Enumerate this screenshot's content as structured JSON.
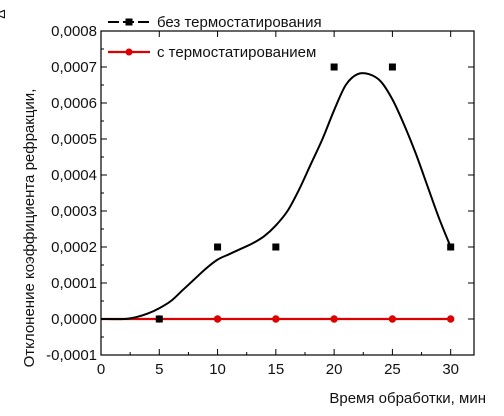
{
  "chart_data": {
    "type": "line",
    "corner_label": "Δ",
    "xlabel": "Время обработки, мин",
    "ylabel": "Отклонение коэффициента рефракции,",
    "xlim": [
      0,
      32
    ],
    "ylim": [
      -0.0001,
      0.0008
    ],
    "x_ticks": [
      0,
      5,
      10,
      15,
      20,
      25,
      30
    ],
    "x_tick_labels": [
      "0",
      "5",
      "10",
      "15",
      "20",
      "25",
      "30"
    ],
    "y_ticks": [
      -0.0001,
      0,
      0.0001,
      0.0002,
      0.0003,
      0.0004,
      0.0005,
      0.0006,
      0.0007,
      0.0008
    ],
    "y_tick_labels": [
      "-0,0001",
      "0,0000",
      "0,0001",
      "0,0002",
      "0,0003",
      "0,0004",
      "0,0005",
      "0,0006",
      "0,0007",
      "0,0008"
    ],
    "grid": false,
    "legend_position": "top-left",
    "series": [
      {
        "name": "без термостатирования",
        "color": "#000000",
        "marker": "square",
        "points": [
          [
            5,
            0
          ],
          [
            10,
            0.0002
          ],
          [
            15,
            0.0002
          ],
          [
            20,
            0.0007
          ],
          [
            25,
            0.0007
          ],
          [
            30,
            0.0002
          ]
        ],
        "fit_curve": [
          [
            0,
            0
          ],
          [
            2,
            0
          ],
          [
            3,
            5e-06
          ],
          [
            4,
            1.5e-05
          ],
          [
            5,
            3e-05
          ],
          [
            6,
            5e-05
          ],
          [
            7,
            8e-05
          ],
          [
            8,
            0.00011
          ],
          [
            9,
            0.00014
          ],
          [
            10,
            0.000165
          ],
          [
            11,
            0.00018
          ],
          [
            12,
            0.000195
          ],
          [
            13,
            0.00021
          ],
          [
            14,
            0.00023
          ],
          [
            15,
            0.00026
          ],
          [
            16,
            0.0003
          ],
          [
            17,
            0.00036
          ],
          [
            18,
            0.00043
          ],
          [
            19,
            0.0005
          ],
          [
            20,
            0.00058
          ],
          [
            21,
            0.00065
          ],
          [
            22,
            0.00068
          ],
          [
            23,
            0.00068
          ],
          [
            24,
            0.00066
          ],
          [
            25,
            0.00061
          ],
          [
            26,
            0.00054
          ],
          [
            27,
            0.00046
          ],
          [
            28,
            0.00037
          ],
          [
            29,
            0.00028
          ],
          [
            30,
            0.0002
          ]
        ]
      },
      {
        "name": "с термостатированием",
        "color": "#dd0000",
        "marker": "circle",
        "points": [
          [
            5,
            0
          ],
          [
            10,
            0
          ],
          [
            15,
            0
          ],
          [
            20,
            0
          ],
          [
            25,
            0
          ],
          [
            30,
            0
          ]
        ],
        "line": [
          [
            0,
            0
          ],
          [
            30,
            0
          ]
        ]
      }
    ]
  }
}
